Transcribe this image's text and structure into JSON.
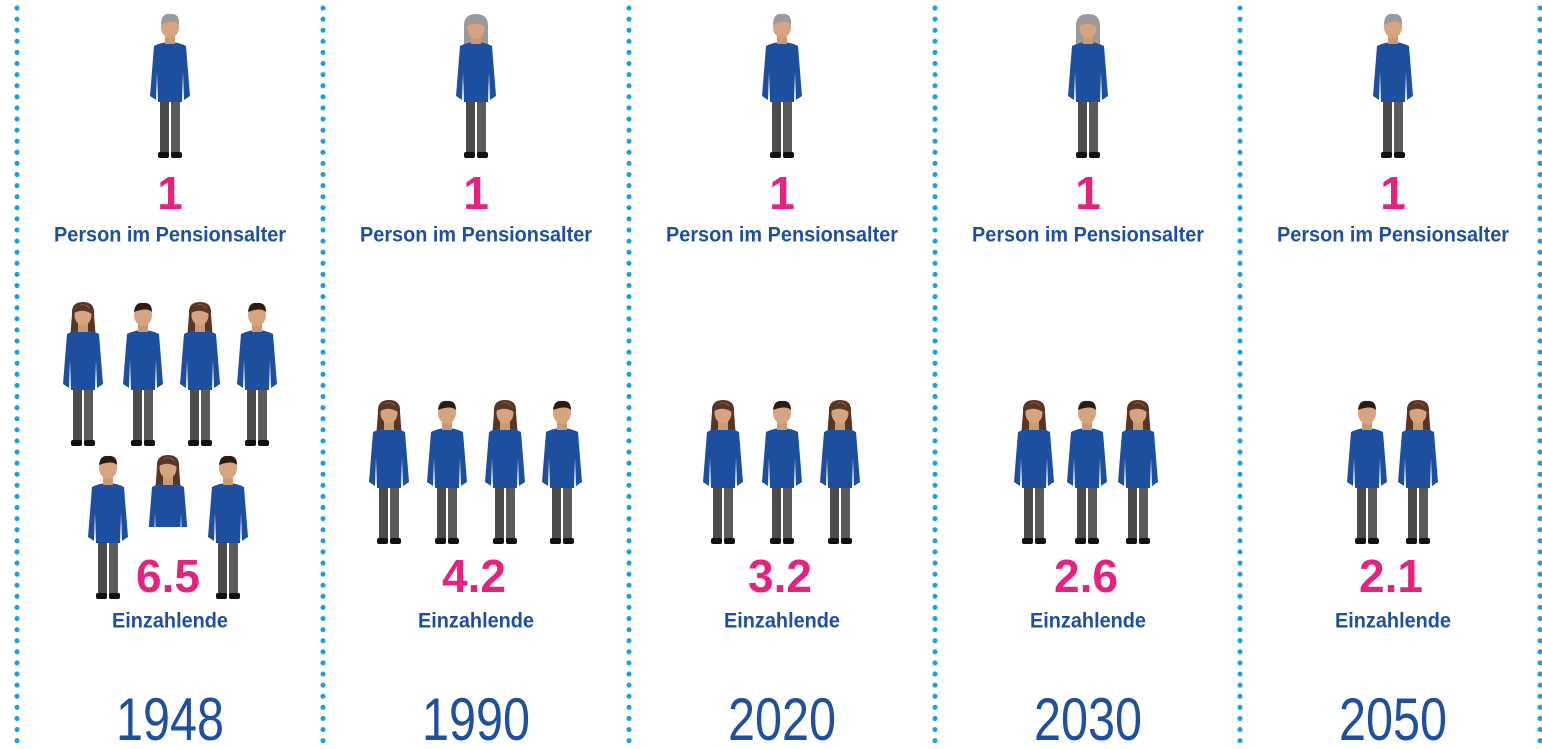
{
  "columns": [
    {
      "retirees": {
        "value": 1,
        "label": "Person im Pensionsalter"
      },
      "payers": {
        "value": 6.5,
        "label": "Einzahlende"
      },
      "year": 1948
    },
    {
      "retirees": {
        "value": 1,
        "label": "Person im Pensionsalter"
      },
      "payers": {
        "value": 4.2,
        "label": "Einzahlende"
      },
      "year": 1990
    },
    {
      "retirees": {
        "value": 1,
        "label": "Person im Pensionsalter"
      },
      "payers": {
        "value": 3.2,
        "label": "Einzahlende"
      },
      "year": 2020
    },
    {
      "retirees": {
        "value": 1,
        "label": "Person im Pensionsalter"
      },
      "payers": {
        "value": 2.6,
        "label": "Einzahlende"
      },
      "year": 2030
    },
    {
      "retirees": {
        "value": 1,
        "label": "Person im Pensionsalter"
      },
      "payers": {
        "value": 2.1,
        "label": "Einzahlende"
      },
      "year": 2050
    }
  ]
}
